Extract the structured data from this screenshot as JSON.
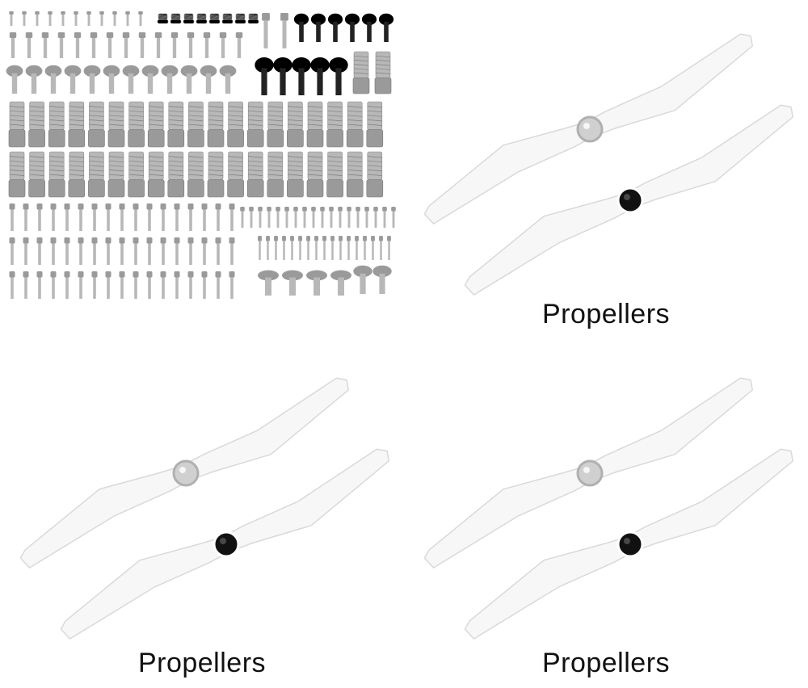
{
  "panels": [
    {
      "id": "screws",
      "caption": ""
    },
    {
      "id": "propellers-top-right",
      "caption": "Propellers"
    },
    {
      "id": "propellers-bottom-left",
      "caption": "Propellers"
    },
    {
      "id": "propellers-bottom-right",
      "caption": "Propellers"
    }
  ],
  "colors": {
    "background": "#ffffff",
    "blade": "#f7f7f7",
    "blade_edge": "#d9d9d9",
    "hub_black": "#111111",
    "hub_silver": "#d0d0d0",
    "screw_silver": "#b8b8b8",
    "screw_dark": "#222222",
    "text": "#111111"
  }
}
